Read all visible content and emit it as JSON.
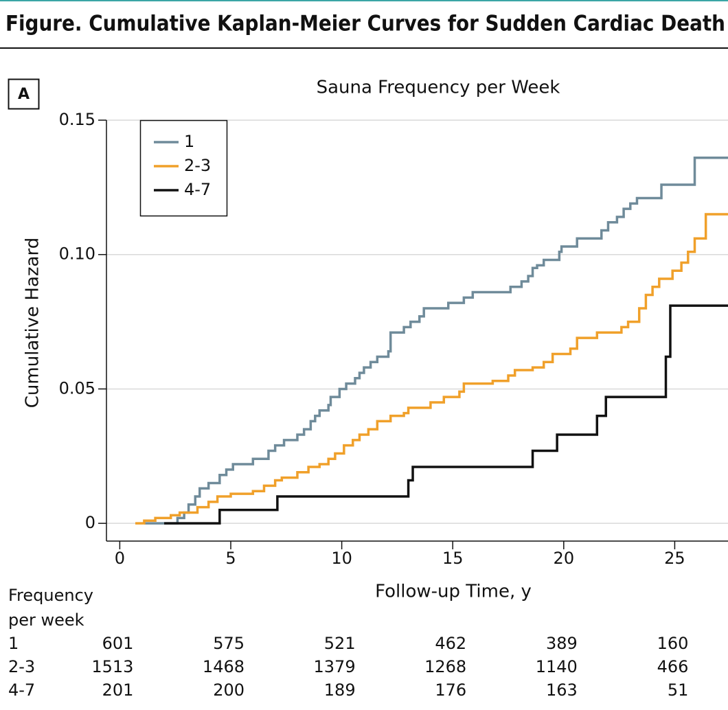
{
  "header": {
    "title": "Figure. Cumulative Kaplan-Meier Curves for Sudden Cardiac Death"
  },
  "panel_label": "A",
  "chart_data": {
    "type": "line",
    "step": true,
    "title": "Sauna Frequency per Week",
    "xlabel": "Follow-up Time, y",
    "ylabel": "Cumulative Hazard",
    "xlim": [
      -0.6,
      27.4
    ],
    "ylim": [
      -0.0066,
      0.15
    ],
    "xticks": [
      0,
      5,
      10,
      15,
      20,
      25
    ],
    "yticks": [
      0,
      0.05,
      {
        "value": 0.1,
        "label": "0.10"
      },
      0.15
    ],
    "grid": true,
    "legend": "upper left",
    "series": [
      {
        "name": "1",
        "color": "#6f8b9a",
        "x": [
          1.1,
          2.6,
          2.9,
          3.1,
          3.4,
          3.6,
          4.0,
          4.5,
          4.8,
          5.1,
          6.0,
          6.7,
          7.0,
          7.4,
          8.0,
          8.3,
          8.6,
          8.8,
          9.0,
          9.4,
          9.5,
          9.9,
          10.2,
          10.6,
          10.8,
          11.0,
          11.3,
          11.6,
          12.1,
          12.2,
          12.8,
          13.1,
          13.5,
          13.7,
          14.8,
          15.5,
          15.9,
          17.6,
          18.1,
          18.4,
          18.6,
          18.8,
          19.1,
          19.8,
          19.9,
          20.6,
          21.7,
          22.0,
          22.4,
          22.7,
          23.0,
          23.3,
          24.4,
          25.9,
          27.4
        ],
        "values": [
          0,
          0.002,
          0.004,
          0.007,
          0.01,
          0.013,
          0.015,
          0.018,
          0.02,
          0.022,
          0.024,
          0.027,
          0.029,
          0.031,
          0.033,
          0.035,
          0.038,
          0.04,
          0.042,
          0.044,
          0.047,
          0.05,
          0.052,
          0.054,
          0.056,
          0.058,
          0.06,
          0.062,
          0.064,
          0.071,
          0.073,
          0.075,
          0.077,
          0.08,
          0.082,
          0.084,
          0.086,
          0.088,
          0.09,
          0.092,
          0.095,
          0.096,
          0.098,
          0.101,
          0.103,
          0.106,
          0.109,
          0.112,
          0.114,
          0.117,
          0.119,
          0.121,
          0.126,
          0.136,
          0.136
        ]
      },
      {
        "name": "2-3",
        "color": "#f0a02a",
        "x": [
          0.7,
          1.1,
          1.6,
          2.3,
          2.7,
          3.5,
          4.0,
          4.4,
          5.0,
          6.0,
          6.5,
          7.0,
          7.3,
          8.0,
          8.5,
          9.0,
          9.4,
          9.7,
          10.1,
          10.5,
          10.8,
          11.2,
          11.6,
          12.2,
          12.8,
          13.0,
          14.0,
          14.6,
          15.3,
          15.5,
          16.8,
          17.5,
          17.8,
          18.6,
          19.1,
          19.5,
          20.3,
          20.6,
          21.5,
          22.6,
          22.9,
          23.4,
          23.7,
          24.0,
          24.3,
          24.9,
          25.3,
          25.6,
          25.9,
          26.4,
          27.4
        ],
        "values": [
          0,
          0.001,
          0.002,
          0.003,
          0.004,
          0.006,
          0.008,
          0.01,
          0.011,
          0.012,
          0.014,
          0.016,
          0.017,
          0.019,
          0.021,
          0.022,
          0.024,
          0.026,
          0.029,
          0.031,
          0.033,
          0.035,
          0.038,
          0.04,
          0.041,
          0.043,
          0.045,
          0.047,
          0.049,
          0.052,
          0.053,
          0.055,
          0.057,
          0.058,
          0.06,
          0.063,
          0.065,
          0.069,
          0.071,
          0.073,
          0.075,
          0.08,
          0.085,
          0.088,
          0.091,
          0.094,
          0.097,
          0.101,
          0.106,
          0.115,
          0.115
        ]
      },
      {
        "name": "4-7",
        "color": "#111111",
        "x": [
          2.0,
          4.5,
          7.1,
          13.0,
          13.2,
          18.6,
          19.7,
          21.5,
          21.9,
          24.6,
          24.8,
          27.4
        ],
        "values": [
          0,
          0.005,
          0.01,
          0.016,
          0.021,
          0.027,
          0.033,
          0.04,
          0.047,
          0.062,
          0.081,
          0.081
        ]
      }
    ]
  },
  "risk_table": {
    "header": "Frequency per week",
    "rows": [
      {
        "label": "1",
        "values": [
          601,
          575,
          521,
          462,
          389,
          160
        ]
      },
      {
        "label": "2-3",
        "values": [
          1513,
          1468,
          1379,
          1268,
          1140,
          466
        ]
      },
      {
        "label": "4-7",
        "values": [
          201,
          200,
          189,
          176,
          163,
          51
        ]
      }
    ]
  }
}
